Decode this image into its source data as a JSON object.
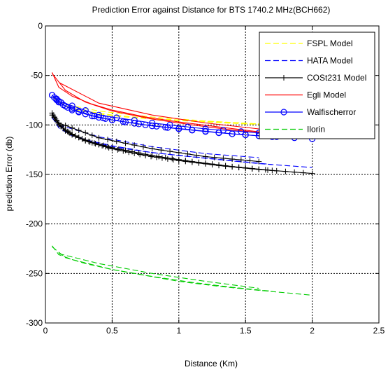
{
  "chart_data": {
    "type": "line",
    "title": "Prediction Error against Distance for BTS 1740.2 MHz(BCH662)",
    "xlabel": "Distance (Km)",
    "ylabel": "prediction Error (db)",
    "xlim": [
      0,
      2.5
    ],
    "ylim": [
      -300,
      0
    ],
    "xticks": [
      0,
      0.5,
      1,
      1.5,
      2,
      2.5
    ],
    "xtick_labels": [
      "0",
      "0.5",
      "1",
      "1.5",
      "2",
      "2.5"
    ],
    "yticks": [
      0,
      -50,
      -100,
      -150,
      -200,
      -250,
      -300
    ],
    "ytick_labels": [
      "0",
      "-50",
      "-100",
      "-150",
      "-200",
      "-250",
      "-300"
    ],
    "grid": true,
    "legend_position": "top-right",
    "series": [
      {
        "name": "FSPL Model",
        "color": "#ffff00",
        "style": "dashed",
        "marker": "none",
        "traces": [
          [
            [
              0.05,
              -72
            ],
            [
              0.15,
              -81
            ],
            [
              0.3,
              -86
            ],
            [
              0.5,
              -90
            ],
            [
              0.75,
              -93
            ],
            [
              1.0,
              -95
            ],
            [
              1.3,
              -97
            ],
            [
              1.6,
              -99
            ],
            [
              2.0,
              -101
            ]
          ],
          [
            [
              0.05,
              -72
            ],
            [
              0.2,
              -84
            ],
            [
              0.4,
              -89
            ],
            [
              0.6,
              -92
            ],
            [
              0.9,
              -95
            ],
            [
              1.2,
              -97
            ],
            [
              1.5,
              -99
            ],
            [
              1.75,
              -100
            ]
          ],
          [
            [
              0.1,
              -78
            ],
            [
              0.4,
              -86
            ],
            [
              0.8,
              -92
            ],
            [
              1.2,
              -96
            ],
            [
              1.6,
              -99
            ]
          ]
        ]
      },
      {
        "name": "HATA Model",
        "color": "#0000ff",
        "style": "dashed",
        "marker": "none",
        "traces": [
          [
            [
              0.05,
              -92
            ],
            [
              0.1,
              -103
            ],
            [
              0.2,
              -111
            ],
            [
              0.35,
              -117
            ],
            [
              0.5,
              -122
            ],
            [
              0.75,
              -127
            ],
            [
              1.0,
              -131
            ],
            [
              1.3,
              -135
            ],
            [
              1.6,
              -139
            ],
            [
              2.0,
              -143
            ]
          ],
          [
            [
              0.05,
              -93
            ],
            [
              0.15,
              -107
            ],
            [
              0.3,
              -115
            ],
            [
              0.5,
              -121
            ],
            [
              0.8,
              -128
            ],
            [
              1.1,
              -132
            ],
            [
              1.4,
              -136
            ],
            [
              1.7,
              -140
            ]
          ],
          [
            [
              0.1,
              -100
            ],
            [
              0.4,
              -112
            ],
            [
              0.8,
              -122
            ],
            [
              1.2,
              -129
            ],
            [
              1.6,
              -133
            ]
          ]
        ]
      },
      {
        "name": "COSt231 Model",
        "color": "#000000",
        "style": "solid",
        "marker": "plus",
        "traces": [
          [
            [
              0.05,
              -88
            ],
            [
              0.1,
              -100
            ],
            [
              0.2,
              -110
            ],
            [
              0.35,
              -118
            ],
            [
              0.5,
              -124
            ],
            [
              0.75,
              -131
            ],
            [
              1.0,
              -136
            ],
            [
              1.3,
              -141
            ],
            [
              1.6,
              -145
            ],
            [
              2.0,
              -149
            ]
          ],
          [
            [
              0.05,
              -90
            ],
            [
              0.15,
              -106
            ],
            [
              0.3,
              -116
            ],
            [
              0.5,
              -123
            ],
            [
              0.8,
              -131
            ],
            [
              1.1,
              -137
            ],
            [
              1.4,
              -142
            ],
            [
              1.7,
              -146
            ]
          ],
          [
            [
              0.1,
              -98
            ],
            [
              0.4,
              -113
            ],
            [
              0.8,
              -124
            ],
            [
              1.2,
              -132
            ],
            [
              1.6,
              -137
            ]
          ]
        ]
      },
      {
        "name": "Egli Model",
        "color": "#ff0000",
        "style": "solid",
        "marker": "none",
        "traces": [
          [
            [
              0.05,
              -47
            ],
            [
              0.1,
              -62
            ],
            [
              0.2,
              -71
            ],
            [
              0.35,
              -79
            ],
            [
              0.5,
              -85
            ],
            [
              0.75,
              -92
            ],
            [
              1.0,
              -97
            ],
            [
              1.3,
              -102
            ],
            [
              1.6,
              -107
            ],
            [
              2.0,
              -113
            ]
          ],
          [
            [
              0.05,
              -48
            ],
            [
              0.15,
              -65
            ],
            [
              0.3,
              -77
            ],
            [
              0.5,
              -86
            ],
            [
              0.8,
              -94
            ],
            [
              1.1,
              -100
            ],
            [
              1.4,
              -105
            ],
            [
              1.7,
              -109
            ]
          ],
          [
            [
              0.1,
              -57
            ],
            [
              0.4,
              -78
            ],
            [
              0.8,
              -90
            ],
            [
              1.2,
              -98
            ],
            [
              1.6,
              -104
            ]
          ]
        ]
      },
      {
        "name": "Walfischerror",
        "color": "#0000ff",
        "style": "solid",
        "marker": "circle",
        "traces": [
          [
            [
              0.05,
              -70
            ],
            [
              0.1,
              -77
            ],
            [
              0.2,
              -85
            ],
            [
              0.35,
              -91
            ],
            [
              0.5,
              -95
            ],
            [
              0.75,
              -100
            ],
            [
              1.0,
              -104
            ],
            [
              1.3,
              -108
            ],
            [
              1.6,
              -111
            ],
            [
              2.0,
              -114
            ]
          ],
          [
            [
              0.05,
              -70
            ],
            [
              0.15,
              -81
            ],
            [
              0.3,
              -89
            ],
            [
              0.5,
              -95
            ],
            [
              0.8,
              -101
            ],
            [
              1.1,
              -105
            ],
            [
              1.4,
              -109
            ],
            [
              1.7,
              -112
            ]
          ],
          [
            [
              0.1,
              -76
            ],
            [
              0.4,
              -90
            ],
            [
              0.8,
              -98
            ],
            [
              1.2,
              -104
            ],
            [
              1.6,
              -108
            ]
          ]
        ]
      },
      {
        "name": "Ilorin",
        "color": "#00cc00",
        "style": "dashed",
        "marker": "none",
        "traces": [
          [
            [
              0.05,
              -222
            ],
            [
              0.1,
              -231
            ],
            [
              0.2,
              -236
            ],
            [
              0.35,
              -241
            ],
            [
              0.5,
              -246
            ],
            [
              0.75,
              -252
            ],
            [
              1.0,
              -258
            ],
            [
              1.3,
              -263
            ],
            [
              1.6,
              -267
            ],
            [
              2.0,
              -272
            ]
          ],
          [
            [
              0.05,
              -223
            ],
            [
              0.15,
              -234
            ],
            [
              0.3,
              -240
            ],
            [
              0.5,
              -246
            ],
            [
              0.8,
              -253
            ],
            [
              1.1,
              -259
            ],
            [
              1.4,
              -264
            ],
            [
              1.7,
              -268
            ]
          ],
          [
            [
              0.1,
              -230
            ],
            [
              0.4,
              -240
            ],
            [
              0.8,
              -250
            ],
            [
              1.2,
              -258
            ],
            [
              1.6,
              -265
            ]
          ]
        ]
      }
    ]
  }
}
